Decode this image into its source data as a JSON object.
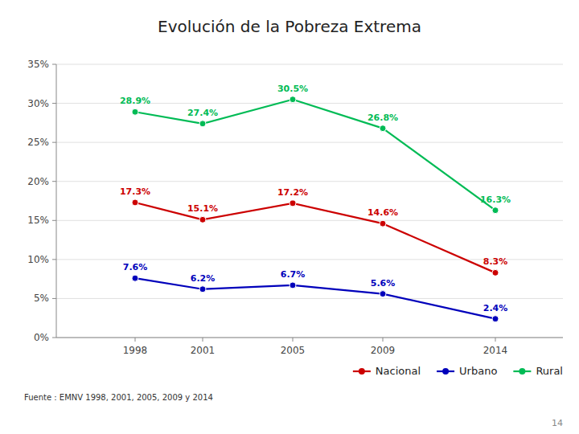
{
  "chart_data": {
    "type": "line",
    "title": "Evolución de la Pobreza Extrema",
    "x": [
      1998,
      2001,
      2005,
      2009,
      2014
    ],
    "series": [
      {
        "name": "Nacional",
        "color": "#cc0000",
        "marker": "circle",
        "line_style": "solid",
        "values": [
          17.3,
          15.1,
          17.2,
          14.6,
          8.3
        ],
        "value_labels": [
          "17.3%",
          "15.1%",
          "17.2%",
          "14.6%",
          "8.3%"
        ]
      },
      {
        "name": "Urbano",
        "color": "#0000bb",
        "marker": "circle",
        "line_style": "solid",
        "values": [
          7.6,
          6.2,
          6.7,
          5.6,
          2.4
        ],
        "value_labels": [
          "7.6%",
          "6.2%",
          "6.7%",
          "5.6%",
          "2.4%"
        ]
      },
      {
        "name": "Rural",
        "color": "#00bb55",
        "marker": "circle",
        "line_style": "solid",
        "values": [
          28.9,
          27.4,
          30.5,
          26.8,
          16.3
        ],
        "value_labels": [
          "28.9%",
          "27.4%",
          "30.5%",
          "26.8%",
          "16.3%"
        ]
      }
    ],
    "xlim": [
      1994.5,
      2017
    ],
    "xticks": [
      1998,
      2001,
      2005,
      2009,
      2014
    ],
    "ylim": [
      0,
      35
    ],
    "yticks": [
      {
        "value": 0,
        "label": "0%"
      },
      {
        "value": 5,
        "label": "5%"
      },
      {
        "value": 10,
        "label": "10%"
      },
      {
        "value": 15,
        "label": "15%"
      },
      {
        "value": 20,
        "label": "20%"
      },
      {
        "value": 25,
        "label": "25%"
      },
      {
        "value": 30,
        "label": "30%"
      },
      {
        "value": 35,
        "label": "35%"
      }
    ],
    "grid": true,
    "data_labels": true,
    "legend": "bottom",
    "source": "Fuente : EMNV 1998, 2001, 2005, 2009 y 2014",
    "footer": "14"
  }
}
